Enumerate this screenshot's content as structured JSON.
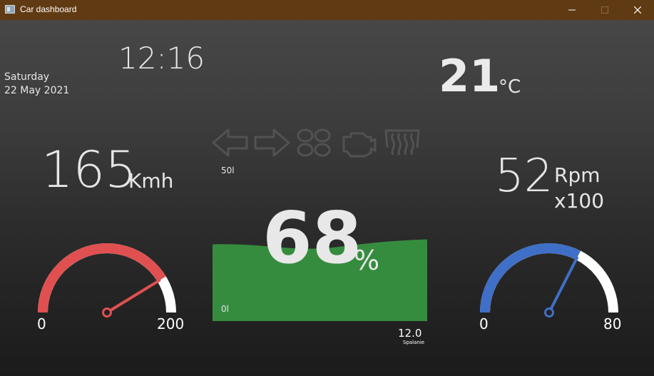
{
  "window": {
    "title": "Car dashboard"
  },
  "clock": {
    "time": "12:16",
    "day": "Saturday",
    "date": "22 May 2021"
  },
  "temperature": {
    "value": "21",
    "unit": "°C"
  },
  "speed": {
    "value": "165",
    "unit": "Kmh",
    "gauge": {
      "min_label": "0",
      "max_label": "200",
      "level": 0.825,
      "color": "#e05050"
    }
  },
  "rpm": {
    "value": "52",
    "unit_line1": "Rpm",
    "unit_line2": "x100",
    "gauge": {
      "min_label": "0",
      "max_label": "80",
      "level": 0.65,
      "color": "#3f6fc7"
    }
  },
  "fuel": {
    "percent": "68",
    "percent_sign": "%",
    "top_label": "50l",
    "bottom_label": "0l",
    "level": 0.68,
    "color": "#368c3e",
    "consumption_value": "12.0",
    "consumption_label": "Spalanie"
  },
  "indicators": [
    {
      "icon": "left-turn-signal-icon"
    },
    {
      "icon": "right-turn-signal-icon"
    },
    {
      "icon": "glow-plug-icon"
    },
    {
      "icon": "check-engine-icon"
    },
    {
      "icon": "defroster-icon"
    }
  ]
}
